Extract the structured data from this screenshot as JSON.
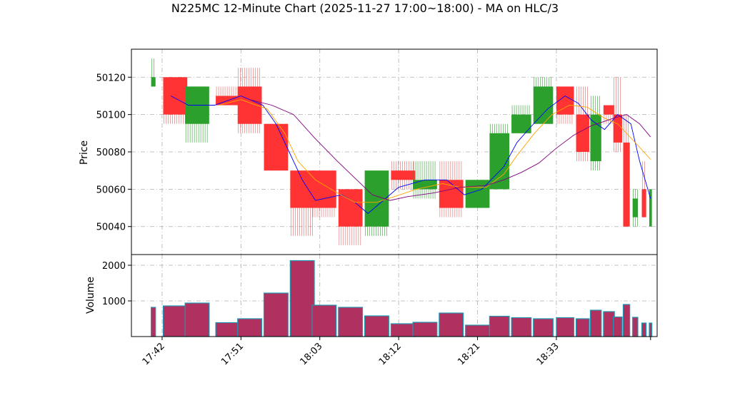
{
  "chart_data": {
    "type": "candlestick",
    "title": "N225MC 12-Minute Chart (2025-11-27 17:00~18:00) - MA on HLC/3",
    "price_panel": {
      "ylabel": "Price",
      "ylim": [
        50025,
        50135
      ],
      "yticks": [
        50040,
        50060,
        50080,
        50100,
        50120
      ],
      "grid": true
    },
    "volume_panel": {
      "ylabel": "Volume",
      "ylim": [
        0,
        2300
      ],
      "yticks": [
        1000,
        2000
      ],
      "grid": true
    },
    "xlim": [
      17.75,
      18.95
    ],
    "x_tick_labels": [
      "17:42",
      "17:51",
      "18:03",
      "18:12",
      "18:21",
      "18:33"
    ],
    "x_tick_values": [
      17.82,
      18.0,
      18.18,
      18.36,
      18.54,
      18.72
    ],
    "candles": [
      {
        "x": 17.8,
        "open": 50115,
        "high": 50130,
        "low": 50115,
        "close": 50120,
        "volume": 820,
        "width": 0.01
      },
      {
        "x": 17.85,
        "open": 50120,
        "high": 50120,
        "low": 50095,
        "close": 50100,
        "volume": 860,
        "width": 0.055
      },
      {
        "x": 17.9,
        "open": 50095,
        "high": 50115,
        "low": 50085,
        "close": 50115,
        "volume": 940,
        "width": 0.055
      },
      {
        "x": 17.97,
        "open": 50110,
        "high": 50115,
        "low": 50105,
        "close": 50105,
        "volume": 390,
        "width": 0.055
      },
      {
        "x": 18.02,
        "open": 50115,
        "high": 50125,
        "low": 50090,
        "close": 50095,
        "volume": 500,
        "width": 0.055
      },
      {
        "x": 18.08,
        "open": 50095,
        "high": 50095,
        "low": 50070,
        "close": 50070,
        "volume": 1220,
        "width": 0.055
      },
      {
        "x": 18.14,
        "open": 50070,
        "high": 50070,
        "low": 50035,
        "close": 50050,
        "volume": 2130,
        "width": 0.055
      },
      {
        "x": 18.19,
        "open": 50070,
        "high": 50070,
        "low": 50045,
        "close": 50050,
        "volume": 880,
        "width": 0.055
      },
      {
        "x": 18.25,
        "open": 50060,
        "high": 50060,
        "low": 50030,
        "close": 50040,
        "volume": 820,
        "width": 0.055
      },
      {
        "x": 18.31,
        "open": 50040,
        "high": 50070,
        "low": 50035,
        "close": 50070,
        "volume": 580,
        "width": 0.055
      },
      {
        "x": 18.37,
        "open": 50070,
        "high": 50075,
        "low": 50060,
        "close": 50065,
        "volume": 360,
        "width": 0.055
      },
      {
        "x": 18.42,
        "open": 50060,
        "high": 50075,
        "low": 50055,
        "close": 50065,
        "volume": 400,
        "width": 0.055
      },
      {
        "x": 18.48,
        "open": 50065,
        "high": 50075,
        "low": 50045,
        "close": 50050,
        "volume": 660,
        "width": 0.055
      },
      {
        "x": 18.54,
        "open": 50050,
        "high": 50065,
        "low": 50050,
        "close": 50065,
        "volume": 320,
        "width": 0.055
      },
      {
        "x": 18.59,
        "open": 50060,
        "high": 50095,
        "low": 50060,
        "close": 50090,
        "volume": 570,
        "width": 0.045
      },
      {
        "x": 18.64,
        "open": 50090,
        "high": 50105,
        "low": 50090,
        "close": 50100,
        "volume": 530,
        "width": 0.045
      },
      {
        "x": 18.69,
        "open": 50095,
        "high": 50120,
        "low": 50095,
        "close": 50115,
        "volume": 500,
        "width": 0.045
      },
      {
        "x": 18.74,
        "open": 50115,
        "high": 50115,
        "low": 50095,
        "close": 50100,
        "volume": 530,
        "width": 0.04
      },
      {
        "x": 18.78,
        "open": 50100,
        "high": 50115,
        "low": 50075,
        "close": 50080,
        "volume": 500,
        "width": 0.03
      },
      {
        "x": 18.81,
        "open": 50075,
        "high": 50110,
        "low": 50070,
        "close": 50100,
        "volume": 740,
        "width": 0.025
      },
      {
        "x": 18.84,
        "open": 50105,
        "high": 50105,
        "low": 50095,
        "close": 50100,
        "volume": 700,
        "width": 0.025
      },
      {
        "x": 18.86,
        "open": 50100,
        "high": 50120,
        "low": 50080,
        "close": 50085,
        "volume": 550,
        "width": 0.02
      },
      {
        "x": 18.88,
        "open": 50085,
        "high": 50100,
        "low": 50040,
        "close": 50040,
        "volume": 900,
        "width": 0.015
      },
      {
        "x": 18.9,
        "open": 50045,
        "high": 50060,
        "low": 50040,
        "close": 50055,
        "volume": 540,
        "width": 0.012
      },
      {
        "x": 18.92,
        "open": 50060,
        "high": 50075,
        "low": 50045,
        "close": 50045,
        "volume": 380,
        "width": 0.01
      },
      {
        "x": 18.935,
        "open": 50040,
        "high": 50060,
        "low": 50040,
        "close": 50060,
        "volume": 380,
        "width": 0.006
      }
    ],
    "ma_lines": [
      {
        "color": "#0000ff",
        "points": [
          [
            17.84,
            50110
          ],
          [
            17.88,
            50105
          ],
          [
            17.94,
            50105
          ],
          [
            18.0,
            50110
          ],
          [
            18.05,
            50105
          ],
          [
            18.08,
            50095
          ],
          [
            18.11,
            50080
          ],
          [
            18.14,
            50065
          ],
          [
            18.17,
            50054
          ],
          [
            18.23,
            50057
          ],
          [
            18.26,
            50053
          ],
          [
            18.29,
            50047
          ],
          [
            18.33,
            50055
          ],
          [
            18.36,
            50061
          ],
          [
            18.42,
            50065
          ],
          [
            18.47,
            50065
          ],
          [
            18.51,
            50057
          ],
          [
            18.55,
            50060
          ],
          [
            18.6,
            50072
          ],
          [
            18.63,
            50085
          ],
          [
            18.66,
            50093
          ],
          [
            18.7,
            50103
          ],
          [
            18.74,
            50110
          ],
          [
            18.77,
            50106
          ],
          [
            18.8,
            50097
          ],
          [
            18.83,
            50092
          ],
          [
            18.86,
            50100
          ],
          [
            18.89,
            50095
          ],
          [
            18.91,
            50075
          ],
          [
            18.935,
            50055
          ]
        ]
      },
      {
        "color": "#ffa500",
        "points": [
          [
            17.95,
            50105
          ],
          [
            18.0,
            50108
          ],
          [
            18.06,
            50103
          ],
          [
            18.1,
            50090
          ],
          [
            18.13,
            50075
          ],
          [
            18.17,
            50065
          ],
          [
            18.22,
            50058
          ],
          [
            18.26,
            50053
          ],
          [
            18.31,
            50053
          ],
          [
            18.35,
            50056
          ],
          [
            18.4,
            50060
          ],
          [
            18.46,
            50063
          ],
          [
            18.5,
            50061
          ],
          [
            18.56,
            50061
          ],
          [
            18.6,
            50068
          ],
          [
            18.63,
            50078
          ],
          [
            18.67,
            50090
          ],
          [
            18.71,
            50100
          ],
          [
            18.75,
            50105
          ],
          [
            18.79,
            50104
          ],
          [
            18.83,
            50098
          ],
          [
            18.86,
            50095
          ],
          [
            18.9,
            50085
          ],
          [
            18.935,
            50076
          ]
        ]
      },
      {
        "color": "#800080",
        "points": [
          [
            18.02,
            50108
          ],
          [
            18.07,
            50105
          ],
          [
            18.12,
            50100
          ],
          [
            18.17,
            50087
          ],
          [
            18.22,
            50075
          ],
          [
            18.26,
            50066
          ],
          [
            18.3,
            50057
          ],
          [
            18.34,
            50054
          ],
          [
            18.38,
            50056
          ],
          [
            18.44,
            50058
          ],
          [
            18.5,
            50061
          ],
          [
            18.56,
            50062
          ],
          [
            18.6,
            50065
          ],
          [
            18.64,
            50069
          ],
          [
            18.68,
            50074
          ],
          [
            18.72,
            50082
          ],
          [
            18.76,
            50089
          ],
          [
            18.8,
            50094
          ],
          [
            18.85,
            50098
          ],
          [
            18.88,
            50100
          ],
          [
            18.91,
            50095
          ],
          [
            18.935,
            50088
          ]
        ]
      }
    ],
    "colors": {
      "up": "#2ca02c",
      "down": "#ff3333",
      "wick_up": "#2ca02c",
      "wick_down": "#e06666",
      "volume_fill": "#b03060",
      "volume_edge": "#2196b0",
      "grid": "#b0b0b0"
    }
  }
}
